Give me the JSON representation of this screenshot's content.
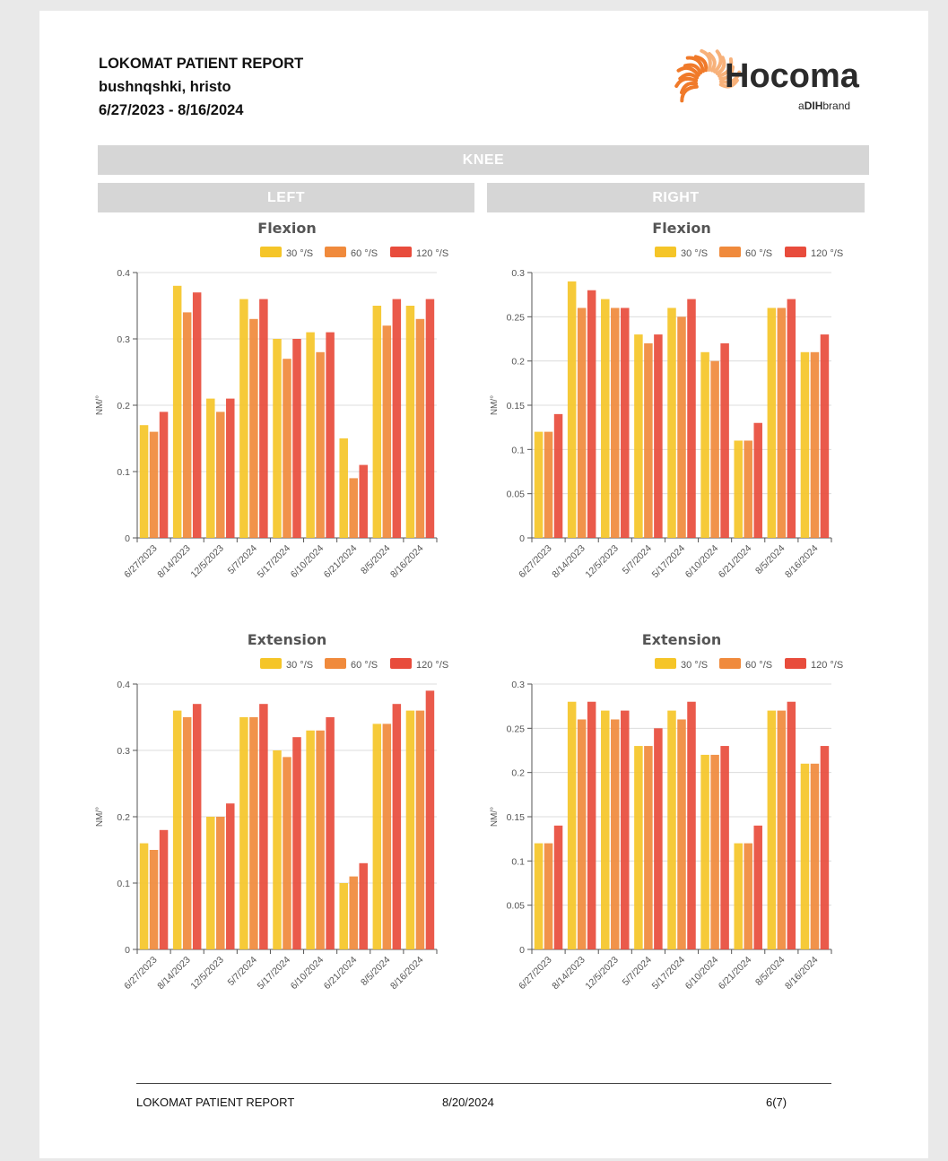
{
  "header": {
    "title": "LOKOMAT PATIENT REPORT",
    "patient": "bushnqshki, hristo",
    "date_range": "6/27/2023 - 8/16/2024"
  },
  "logo": {
    "name": "Hocoma",
    "tagline_a": "a",
    "tagline_brand": "DIH",
    "tagline_suffix": "brand"
  },
  "sections": {
    "main": "KNEE",
    "left": "LEFT",
    "right": "RIGHT"
  },
  "colors": {
    "s30": "#f5c528",
    "s60": "#f08a3c",
    "s120": "#e84c3c",
    "band": "#d6d6d6"
  },
  "chart_data": [
    {
      "id": "left-flexion",
      "type": "bar",
      "title": "Flexion",
      "ylabel": "NM/°",
      "categories": [
        "6/27/2023",
        "8/14/2023",
        "12/5/2023",
        "5/7/2024",
        "5/17/2024",
        "6/10/2024",
        "6/21/2024",
        "8/5/2024",
        "8/16/2024"
      ],
      "ylim": [
        0,
        0.4
      ],
      "yticks": [
        "0",
        "0.1",
        "0.2",
        "0.3",
        "0.4"
      ],
      "ytick_values": [
        0,
        0.1,
        0.2,
        0.3,
        0.4
      ],
      "series": [
        {
          "name": "30 °/S",
          "values": [
            0.17,
            0.38,
            0.21,
            0.36,
            0.3,
            0.31,
            0.15,
            0.35,
            0.35
          ]
        },
        {
          "name": "60 °/S",
          "values": [
            0.16,
            0.34,
            0.19,
            0.33,
            0.27,
            0.28,
            0.09,
            0.32,
            0.33
          ]
        },
        {
          "name": "120 °/S",
          "values": [
            0.19,
            0.37,
            0.21,
            0.36,
            0.3,
            0.31,
            0.11,
            0.36,
            0.36
          ]
        }
      ]
    },
    {
      "id": "right-flexion",
      "type": "bar",
      "title": "Flexion",
      "ylabel": "NM/°",
      "categories": [
        "6/27/2023",
        "8/14/2023",
        "12/5/2023",
        "5/7/2024",
        "5/17/2024",
        "6/10/2024",
        "6/21/2024",
        "8/5/2024",
        "8/16/2024"
      ],
      "ylim": [
        0,
        0.3
      ],
      "yticks": [
        "0",
        "0.05",
        "0.1",
        "0.15",
        "0.2",
        "0.25",
        "0.3"
      ],
      "ytick_values": [
        0,
        0.05,
        0.1,
        0.15,
        0.2,
        0.25,
        0.3
      ],
      "series": [
        {
          "name": "30 °/S",
          "values": [
            0.12,
            0.29,
            0.27,
            0.23,
            0.26,
            0.21,
            0.11,
            0.26,
            0.21
          ]
        },
        {
          "name": "60 °/S",
          "values": [
            0.12,
            0.26,
            0.26,
            0.22,
            0.25,
            0.2,
            0.11,
            0.26,
            0.21
          ]
        },
        {
          "name": "120 °/S",
          "values": [
            0.14,
            0.28,
            0.26,
            0.23,
            0.27,
            0.22,
            0.13,
            0.27,
            0.23
          ]
        }
      ]
    },
    {
      "id": "left-extension",
      "type": "bar",
      "title": "Extension",
      "ylabel": "NM/°",
      "categories": [
        "6/27/2023",
        "8/14/2023",
        "12/5/2023",
        "5/7/2024",
        "5/17/2024",
        "6/10/2024",
        "6/21/2024",
        "8/5/2024",
        "8/16/2024"
      ],
      "ylim": [
        0,
        0.4
      ],
      "yticks": [
        "0",
        "0.1",
        "0.2",
        "0.3",
        "0.4"
      ],
      "ytick_values": [
        0,
        0.1,
        0.2,
        0.3,
        0.4
      ],
      "series": [
        {
          "name": "30 °/S",
          "values": [
            0.16,
            0.36,
            0.2,
            0.35,
            0.3,
            0.33,
            0.1,
            0.34,
            0.36
          ]
        },
        {
          "name": "60 °/S",
          "values": [
            0.15,
            0.35,
            0.2,
            0.35,
            0.29,
            0.33,
            0.11,
            0.34,
            0.36
          ]
        },
        {
          "name": "120 °/S",
          "values": [
            0.18,
            0.37,
            0.22,
            0.37,
            0.32,
            0.35,
            0.13,
            0.37,
            0.39
          ]
        }
      ]
    },
    {
      "id": "right-extension",
      "type": "bar",
      "title": "Extension",
      "ylabel": "NM/°",
      "categories": [
        "6/27/2023",
        "8/14/2023",
        "12/5/2023",
        "5/7/2024",
        "5/17/2024",
        "6/10/2024",
        "6/21/2024",
        "8/5/2024",
        "8/16/2024"
      ],
      "ylim": [
        0,
        0.3
      ],
      "yticks": [
        "0",
        "0.05",
        "0.1",
        "0.15",
        "0.2",
        "0.25",
        "0.3"
      ],
      "ytick_values": [
        0,
        0.05,
        0.1,
        0.15,
        0.2,
        0.25,
        0.3
      ],
      "series": [
        {
          "name": "30 °/S",
          "values": [
            0.12,
            0.28,
            0.27,
            0.23,
            0.27,
            0.22,
            0.12,
            0.27,
            0.21
          ]
        },
        {
          "name": "60 °/S",
          "values": [
            0.12,
            0.26,
            0.26,
            0.23,
            0.26,
            0.22,
            0.12,
            0.27,
            0.21
          ]
        },
        {
          "name": "120 °/S",
          "values": [
            0.14,
            0.28,
            0.27,
            0.25,
            0.28,
            0.23,
            0.14,
            0.28,
            0.23
          ]
        }
      ]
    }
  ],
  "footer": {
    "title": "LOKOMAT PATIENT REPORT",
    "date": "8/20/2024",
    "page": "6(7)"
  }
}
